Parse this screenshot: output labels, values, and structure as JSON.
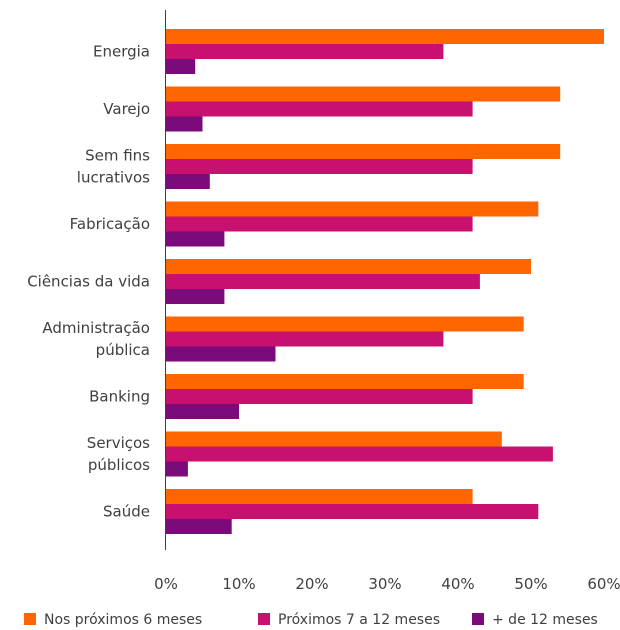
{
  "chart_data": {
    "type": "bar",
    "orientation": "horizontal",
    "title": "",
    "xlabel": "",
    "ylabel": "",
    "xlim": [
      0,
      60
    ],
    "x_ticks": [
      "0%",
      "10%",
      "20%",
      "30%",
      "40%",
      "50%",
      "60%"
    ],
    "grid": false,
    "legend_position": "bottom",
    "categories": [
      [
        "Energia"
      ],
      [
        "Varejo"
      ],
      [
        "Sem fins",
        "lucrativos"
      ],
      [
        "Fabricação"
      ],
      [
        "Ciências da vida"
      ],
      [
        "Administração",
        "pública"
      ],
      [
        "Banking"
      ],
      [
        "Serviços",
        "públicos"
      ],
      [
        "Saúde"
      ]
    ],
    "series": [
      {
        "name": "Nos próximos 6 meses",
        "color": "#FF6600",
        "values": [
          60,
          54,
          54,
          51,
          50,
          49,
          49,
          46,
          42
        ]
      },
      {
        "name": "Próximos 7 a 12 meses",
        "color": "#C8106E",
        "values": [
          38,
          42,
          42,
          42,
          43,
          38,
          42,
          53,
          51
        ]
      },
      {
        "name": "+ de 12 meses",
        "color": "#7B0A7B",
        "values": [
          4,
          5,
          6,
          8,
          8,
          15,
          10,
          3,
          9
        ]
      }
    ]
  }
}
